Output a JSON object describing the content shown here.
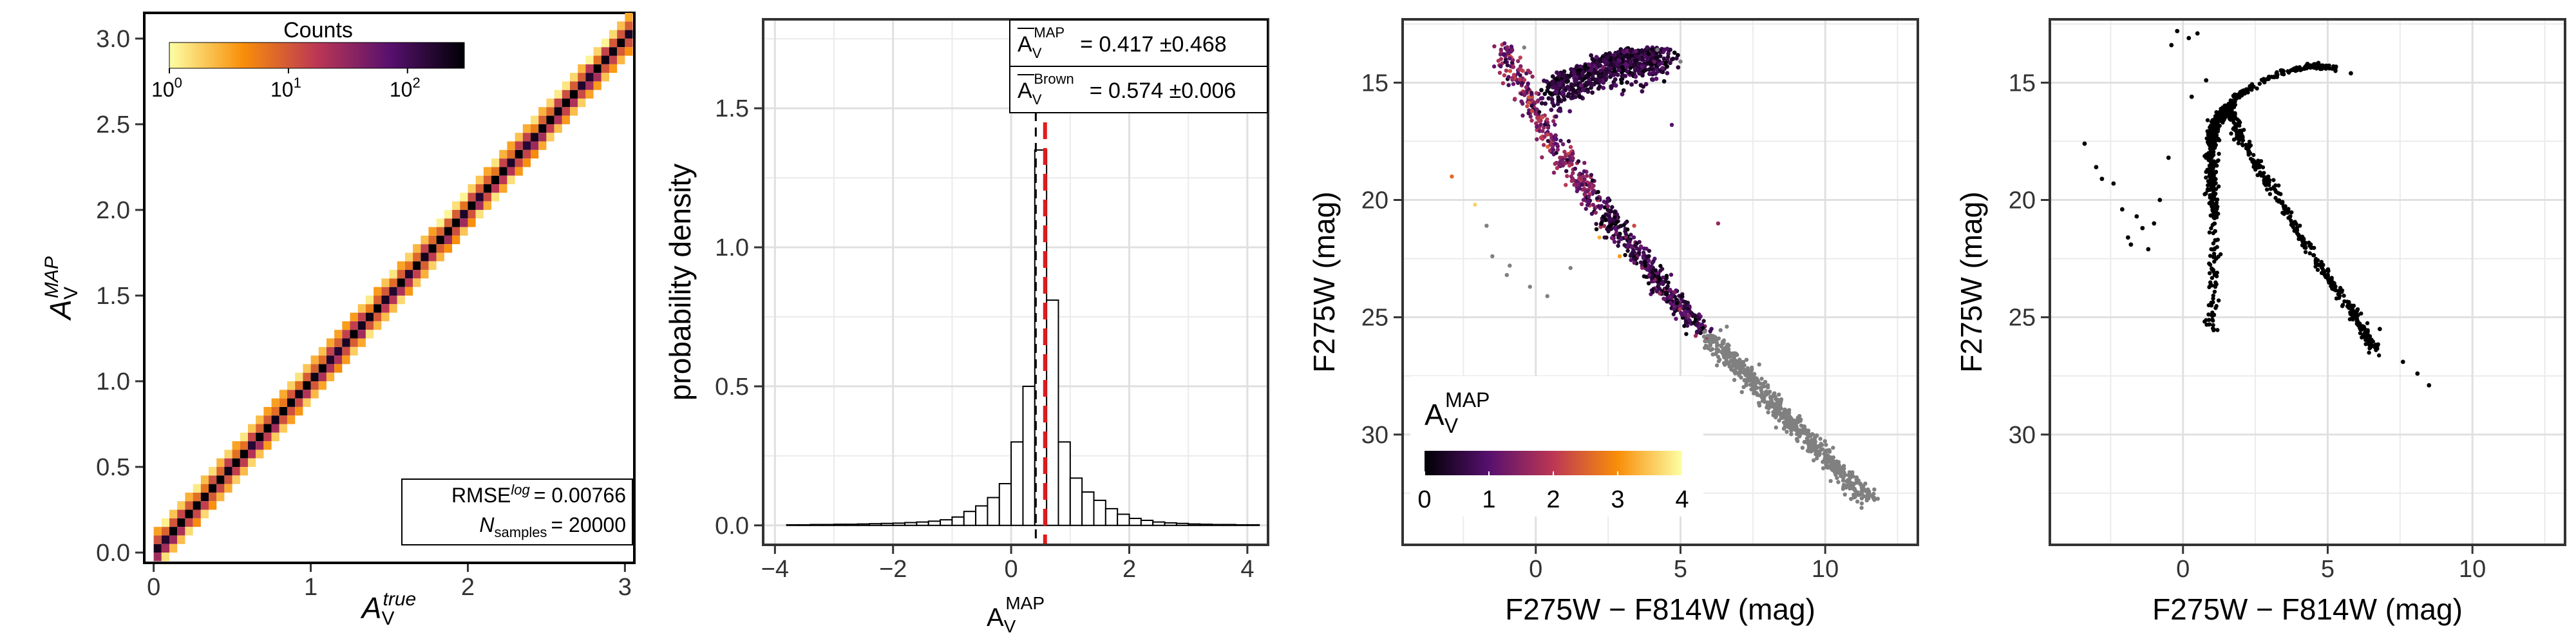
{
  "chart_data": [
    {
      "type": "heatmap",
      "title": "",
      "xlabel": {
        "base": "A",
        "sub": "V",
        "sup": "true"
      },
      "ylabel": {
        "base": "A",
        "sub": "V",
        "sup": "MAP"
      },
      "xlim": [
        -0.06,
        3.06
      ],
      "ylim": [
        -0.06,
        3.15
      ],
      "xticks": [
        0,
        1,
        2,
        3
      ],
      "xtick_labels": [
        "0",
        "1",
        "2",
        "3"
      ],
      "yticks": [
        0.0,
        0.5,
        1.0,
        1.5,
        2.0,
        2.5,
        3.0
      ],
      "ytick_labels": [
        "0.0",
        "0.5",
        "1.0",
        "1.5",
        "2.0",
        "2.5",
        "3.0"
      ],
      "grid": false,
      "diagonal": {
        "from": 0,
        "to": 3,
        "bin_width": 0.05
      },
      "colorbar": {
        "title": "Counts",
        "scale": "log",
        "range": [
          1,
          300
        ],
        "tick_values": [
          1,
          10,
          100
        ],
        "tick_labels": [
          "10",
          "10",
          "10"
        ],
        "tick_exponents": [
          "0",
          "1",
          "2"
        ],
        "colormap": [
          "#fcffa4",
          "#f98e09",
          "#bc3754",
          "#57106e",
          "#000004"
        ]
      },
      "annotation": {
        "rmse_label": "RMSE",
        "rmse_sup": "log",
        "rmse_value": "= 0.00766",
        "n_label": "N",
        "n_sub": "samples",
        "n_value": "= 20000"
      }
    },
    {
      "type": "bar",
      "subtype": "histogram",
      "xlabel": {
        "base": "A",
        "sub": "V",
        "sup": "MAP"
      },
      "ylabel": "probability density",
      "xlim": [
        -4.2,
        4.35
      ],
      "ylim": [
        -0.07,
        1.82
      ],
      "xticks": [
        -4,
        -2,
        0,
        2,
        4
      ],
      "xtick_labels": [
        "−4",
        "−2",
        "0",
        "2",
        "4"
      ],
      "yticks": [
        0.0,
        0.5,
        1.0,
        1.5
      ],
      "ytick_labels": [
        "0.0",
        "0.5",
        "1.0",
        "1.5"
      ],
      "grid": true,
      "bin_width": 0.2,
      "bins": [
        {
          "x0": -3.8,
          "y": 0.002
        },
        {
          "x0": -3.6,
          "y": 0.002
        },
        {
          "x0": -3.4,
          "y": 0.003
        },
        {
          "x0": -3.2,
          "y": 0.003
        },
        {
          "x0": -3.0,
          "y": 0.004
        },
        {
          "x0": -2.8,
          "y": 0.004
        },
        {
          "x0": -2.6,
          "y": 0.005
        },
        {
          "x0": -2.4,
          "y": 0.006
        },
        {
          "x0": -2.2,
          "y": 0.007
        },
        {
          "x0": -2.0,
          "y": 0.008
        },
        {
          "x0": -1.8,
          "y": 0.01
        },
        {
          "x0": -1.6,
          "y": 0.012
        },
        {
          "x0": -1.4,
          "y": 0.015
        },
        {
          "x0": -1.2,
          "y": 0.02
        },
        {
          "x0": -1.0,
          "y": 0.03
        },
        {
          "x0": -0.8,
          "y": 0.05
        },
        {
          "x0": -0.6,
          "y": 0.07
        },
        {
          "x0": -0.4,
          "y": 0.1
        },
        {
          "x0": -0.2,
          "y": 0.15
        },
        {
          "x0": 0.0,
          "y": 0.3
        },
        {
          "x0": 0.2,
          "y": 0.5
        },
        {
          "x0": 0.4,
          "y": 1.35
        },
        {
          "x0": 0.6,
          "y": 0.81
        },
        {
          "x0": 0.8,
          "y": 0.3
        },
        {
          "x0": 1.0,
          "y": 0.17
        },
        {
          "x0": 1.2,
          "y": 0.12
        },
        {
          "x0": 1.4,
          "y": 0.09
        },
        {
          "x0": 1.6,
          "y": 0.06
        },
        {
          "x0": 1.8,
          "y": 0.04
        },
        {
          "x0": 2.0,
          "y": 0.025
        },
        {
          "x0": 2.2,
          "y": 0.018
        },
        {
          "x0": 2.4,
          "y": 0.012
        },
        {
          "x0": 2.6,
          "y": 0.009
        },
        {
          "x0": 2.8,
          "y": 0.007
        },
        {
          "x0": 3.0,
          "y": 0.005
        },
        {
          "x0": 3.2,
          "y": 0.004
        },
        {
          "x0": 3.4,
          "y": 0.003
        },
        {
          "x0": 3.6,
          "y": 0.003
        },
        {
          "x0": 3.8,
          "y": 0.002
        },
        {
          "x0": 4.0,
          "y": 0.002
        }
      ],
      "vlines": [
        {
          "name": "mean-map-line",
          "x": 0.417,
          "color": "#000000",
          "style": "dashed"
        },
        {
          "name": "brown-line",
          "x": 0.574,
          "color": "#e41a1c",
          "style": "dashed"
        }
      ],
      "legend": [
        {
          "label_base": "A",
          "label_sub": "V",
          "label_sup": "MAP",
          "text": "= 0.417 ±0.468"
        },
        {
          "label_base": "A",
          "label_sub": "V",
          "label_sup": "Brown",
          "text": "= 0.574 ±0.006"
        }
      ],
      "legend_position": "top-right"
    },
    {
      "type": "scatter",
      "xlabel": "F275W − F814W (mag)",
      "ylabel": "F275W (mag)",
      "xlim": [
        -4.6,
        13.2
      ],
      "ylim": [
        34.7,
        12.3
      ],
      "y_inverted": true,
      "xticks": [
        0,
        5,
        10
      ],
      "xtick_labels": [
        "0",
        "5",
        "10"
      ],
      "yticks": [
        15,
        20,
        25,
        30
      ],
      "ytick_labels": [
        "15",
        "20",
        "25",
        "30"
      ],
      "grid": true,
      "color_variable": {
        "base": "A",
        "sub": "V",
        "sup": "MAP"
      },
      "colorbar": {
        "range": [
          0,
          4
        ],
        "tick_values": [
          0,
          1,
          2,
          3,
          4
        ],
        "tick_labels": [
          "0",
          "1",
          "2",
          "3",
          "4"
        ],
        "colormap": [
          "#000004",
          "#57106e",
          "#bc3754",
          "#f98e09",
          "#fcffa4"
        ],
        "position": "bottom-left"
      },
      "ridge": [
        [
          -1.2,
          13.6
        ],
        [
          -0.3,
          15.6
        ],
        [
          0.6,
          17.8
        ],
        [
          1.8,
          19.6
        ],
        [
          3.0,
          21.5
        ],
        [
          4.4,
          23.7
        ],
        [
          5.8,
          25.6
        ],
        [
          7.2,
          27.4
        ],
        [
          8.6,
          29.2
        ],
        [
          10.0,
          31.0
        ],
        [
          11.5,
          32.8
        ]
      ],
      "branch": [
        [
          0.5,
          15.2
        ],
        [
          1.5,
          14.6
        ],
        [
          2.6,
          14.1
        ],
        [
          3.7,
          13.8
        ],
        [
          4.6,
          13.8
        ]
      ],
      "outliers": [
        {
          "x": -2.1,
          "y": 20.2,
          "av": 3.6
        },
        {
          "x": -2.9,
          "y": 19.0,
          "av": 2.6
        },
        {
          "x": -1.5,
          "y": 22.4,
          "av": 0.3
        },
        {
          "x": -1.0,
          "y": 23.2,
          "av": 0.2
        },
        {
          "x": -1.7,
          "y": 21.1,
          "av": 0.5
        },
        {
          "x": -0.9,
          "y": 22.8,
          "av": 0.2
        },
        {
          "x": -0.2,
          "y": 23.7,
          "av": 0.4
        },
        {
          "x": 0.4,
          "y": 24.1,
          "av": 0.1
        },
        {
          "x": 1.2,
          "y": 22.9,
          "av": 0.2
        },
        {
          "x": 2.2,
          "y": 21.6,
          "av": 3.3
        },
        {
          "x": 2.9,
          "y": 22.4,
          "av": 3.1
        },
        {
          "x": 3.4,
          "y": 21.1,
          "av": 2.2
        },
        {
          "x": 6.3,
          "y": 21.0,
          "av": 1.6
        },
        {
          "x": 5.0,
          "y": 14.1,
          "av": 0.1
        },
        {
          "x": 4.7,
          "y": 16.8,
          "av": 1.0
        },
        {
          "x": 6.6,
          "y": 25.4,
          "av": 0.3
        },
        {
          "x": 8.3,
          "y": 29.7,
          "av": 0.1
        },
        {
          "x": 9.6,
          "y": 31.1,
          "av": 0.2
        },
        {
          "x": -0.4,
          "y": 13.5,
          "av": 0.1
        },
        {
          "x": 4.2,
          "y": 13.6,
          "av": 0.1
        }
      ]
    },
    {
      "type": "scatter",
      "xlabel": "F275W − F814W (mag)",
      "ylabel": "F275W (mag)",
      "xlim": [
        -4.6,
        13.2
      ],
      "ylim": [
        34.7,
        12.3
      ],
      "y_inverted": true,
      "xticks": [
        0,
        5,
        10
      ],
      "xtick_labels": [
        "0",
        "5",
        "10"
      ],
      "yticks": [
        15,
        20,
        25,
        30
      ],
      "ytick_labels": [
        "15",
        "20",
        "25",
        "30"
      ],
      "grid": true,
      "color": "#000000",
      "sequence": [
        [
          1.0,
          25.8
        ],
        [
          1.1,
          21.0
        ],
        [
          1.0,
          19.2
        ],
        [
          1.0,
          18.0
        ],
        [
          1.0,
          17.2
        ],
        [
          1.1,
          16.7
        ],
        [
          1.4,
          16.3
        ],
        [
          1.6,
          16.1
        ],
        [
          2.0,
          17.4
        ],
        [
          2.9,
          19.2
        ],
        [
          4.0,
          21.4
        ],
        [
          5.1,
          23.5
        ],
        [
          6.0,
          25.0
        ],
        [
          6.7,
          26.5
        ]
      ],
      "branch": [
        [
          1.6,
          16.1
        ],
        [
          1.8,
          15.6
        ],
        [
          2.4,
          15.2
        ],
        [
          3.3,
          14.6
        ],
        [
          4.5,
          14.3
        ],
        [
          5.4,
          14.4
        ]
      ],
      "points": [
        {
          "x": -0.2,
          "y": 12.8
        },
        {
          "x": 0.2,
          "y": 13.1
        },
        {
          "x": -0.4,
          "y": 13.4
        },
        {
          "x": 0.5,
          "y": 12.9
        },
        {
          "x": 0.3,
          "y": 15.6
        },
        {
          "x": 0.8,
          "y": 14.9
        },
        {
          "x": -3.4,
          "y": 17.6
        },
        {
          "x": -3.0,
          "y": 18.6
        },
        {
          "x": -2.8,
          "y": 19.1
        },
        {
          "x": -2.4,
          "y": 19.3
        },
        {
          "x": -2.1,
          "y": 20.4
        },
        {
          "x": -1.6,
          "y": 20.7
        },
        {
          "x": -1.9,
          "y": 21.6
        },
        {
          "x": -1.4,
          "y": 21.2
        },
        {
          "x": -1.0,
          "y": 21.0
        },
        {
          "x": -0.8,
          "y": 20.0
        },
        {
          "x": -1.2,
          "y": 22.1
        },
        {
          "x": -1.8,
          "y": 21.9
        },
        {
          "x": -0.5,
          "y": 18.2
        },
        {
          "x": 4.3,
          "y": 14.2
        },
        {
          "x": 5.8,
          "y": 14.6
        },
        {
          "x": 6.4,
          "y": 26.0
        },
        {
          "x": 6.8,
          "y": 25.5
        },
        {
          "x": 7.6,
          "y": 26.9
        },
        {
          "x": 8.1,
          "y": 27.4
        },
        {
          "x": 8.5,
          "y": 27.9
        }
      ]
    }
  ]
}
